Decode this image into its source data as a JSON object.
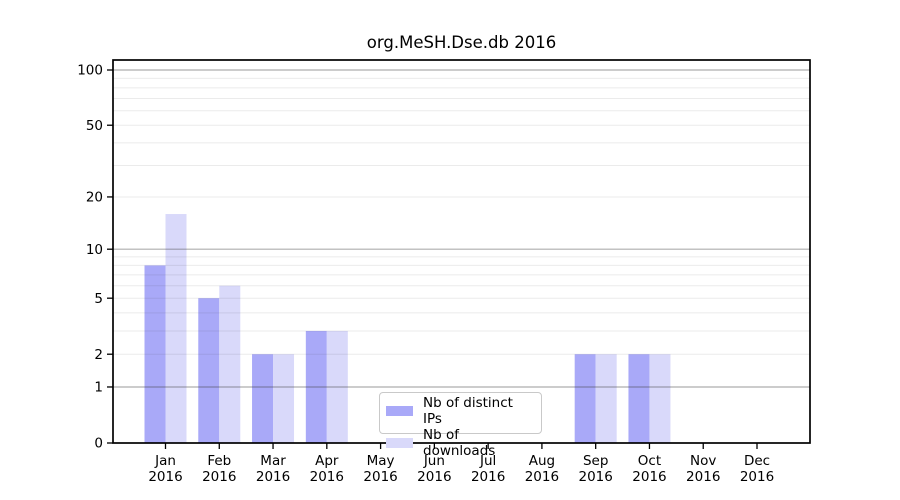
{
  "chart_data": {
    "type": "bar",
    "title": "org.MeSH.Dse.db 2016",
    "categories": [
      "Jan",
      "Feb",
      "Mar",
      "Apr",
      "May",
      "Jun",
      "Jul",
      "Aug",
      "Sep",
      "Oct",
      "Nov",
      "Dec"
    ],
    "category_year": "2016",
    "series": [
      {
        "name": "Nb of distinct IPs",
        "color": "#a9a9f8",
        "values": [
          8,
          5,
          2,
          3,
          0,
          0,
          0,
          0,
          2,
          2,
          0,
          0
        ]
      },
      {
        "name": "Nb of downloads",
        "color": "#d9d9fa",
        "values": [
          16,
          6,
          2,
          3,
          0,
          0,
          0,
          0,
          2,
          2,
          0,
          0
        ]
      }
    ],
    "y_scale": "log1p",
    "ylim": [
      0,
      113
    ],
    "y_ticks": [
      0,
      1,
      2,
      5,
      10,
      20,
      50,
      100
    ],
    "gridlines": {
      "major": [
        1,
        10,
        100
      ],
      "minor": [
        2,
        3,
        4,
        5,
        6,
        7,
        8,
        9,
        20,
        30,
        40,
        50,
        60,
        70,
        80,
        90
      ],
      "major_color": "rgba(60,60,60,0.42)",
      "minor_color": "rgba(60,60,60,0.10)"
    },
    "legend_position": "inside bottom-center",
    "spine_color": "#000000",
    "background_color": "#ffffff"
  }
}
